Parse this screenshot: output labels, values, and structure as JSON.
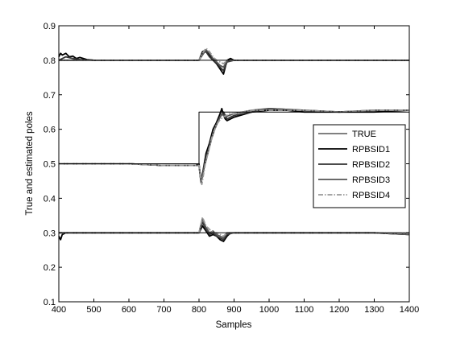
{
  "chart_data": {
    "type": "line",
    "xlabel": "Samples",
    "ylabel": "True and estimated poles",
    "xlim": [
      400,
      1400
    ],
    "ylim": [
      0.1,
      0.9
    ],
    "xticks": [
      400,
      500,
      600,
      700,
      800,
      900,
      1000,
      1100,
      1200,
      1300,
      1400
    ],
    "yticks": [
      0.1,
      0.2,
      0.3,
      0.4,
      0.5,
      0.6,
      0.7,
      0.8,
      0.9
    ],
    "grid": false,
    "legend_position": "right-middle",
    "series": [
      {
        "name": "TRUE",
        "color": "#000000",
        "style": "solid",
        "lines": [
          {
            "x": [
              400,
              1400
            ],
            "y": [
              0.8,
              0.8
            ]
          },
          {
            "x": [
              400,
              800,
              800,
              1400
            ],
            "y": [
              0.5,
              0.5,
              0.65,
              0.65
            ]
          },
          {
            "x": [
              400,
              1400
            ],
            "y": [
              0.3,
              0.3
            ]
          }
        ]
      },
      {
        "name": "RPBSID1",
        "color": "#000000",
        "style": "solid",
        "lines": [
          {
            "x": [
              400,
              405,
              410,
              420,
              430,
              440,
              450,
              460,
              480,
              500,
              600,
              700,
              790,
              800,
              810,
              820,
              830,
              840,
              850,
              860,
              870,
              880,
              890,
              900,
              950,
              1000,
              1100,
              1200,
              1300,
              1400
            ],
            "y": [
              0.81,
              0.82,
              0.815,
              0.82,
              0.81,
              0.812,
              0.805,
              0.808,
              0.802,
              0.8,
              0.8,
              0.8,
              0.8,
              0.8,
              0.825,
              0.83,
              0.815,
              0.8,
              0.79,
              0.775,
              0.76,
              0.8,
              0.805,
              0.8,
              0.8,
              0.8,
              0.8,
              0.8,
              0.8,
              0.8
            ]
          },
          {
            "x": [
              400,
              500,
              600,
              700,
              790,
              800,
              805,
              810,
              820,
              830,
              840,
              850,
              860,
              865,
              870,
              875,
              880,
              890,
              900,
              950,
              1000,
              1050,
              1100,
              1200,
              1300,
              1400
            ],
            "y": [
              0.5,
              0.5,
              0.5,
              0.495,
              0.495,
              0.5,
              0.45,
              0.47,
              0.53,
              0.56,
              0.6,
              0.62,
              0.645,
              0.66,
              0.64,
              0.63,
              0.625,
              0.63,
              0.635,
              0.65,
              0.655,
              0.655,
              0.65,
              0.65,
              0.65,
              0.655
            ]
          },
          {
            "x": [
              400,
              405,
              410,
              420,
              500,
              600,
              700,
              790,
              800,
              810,
              820,
              830,
              840,
              850,
              860,
              870,
              880,
              890,
              900,
              1000,
              1100,
              1200,
              1300,
              1400
            ],
            "y": [
              0.29,
              0.28,
              0.295,
              0.3,
              0.3,
              0.3,
              0.3,
              0.3,
              0.3,
              0.32,
              0.305,
              0.29,
              0.295,
              0.29,
              0.28,
              0.275,
              0.29,
              0.3,
              0.3,
              0.3,
              0.3,
              0.3,
              0.3,
              0.295
            ]
          }
        ]
      },
      {
        "name": "RPBSID2",
        "color": "#333333",
        "style": "solid",
        "lines": [
          {
            "x": [
              400,
              420,
              440,
              460,
              500,
              600,
              700,
              800,
              810,
              820,
              830,
              840,
              850,
              860,
              870,
              880,
              900,
              1000,
              1100,
              1200,
              1300,
              1400
            ],
            "y": [
              0.8,
              0.81,
              0.805,
              0.802,
              0.8,
              0.8,
              0.8,
              0.8,
              0.82,
              0.825,
              0.81,
              0.8,
              0.792,
              0.78,
              0.77,
              0.795,
              0.8,
              0.8,
              0.8,
              0.8,
              0.8,
              0.8
            ]
          },
          {
            "x": [
              400,
              500,
              600,
              700,
              800,
              805,
              812,
              820,
              830,
              840,
              850,
              860,
              870,
              880,
              890,
              900,
              950,
              1000,
              1100,
              1200,
              1300,
              1400
            ],
            "y": [
              0.5,
              0.5,
              0.5,
              0.495,
              0.495,
              0.455,
              0.48,
              0.52,
              0.55,
              0.59,
              0.615,
              0.635,
              0.65,
              0.63,
              0.635,
              0.64,
              0.65,
              0.66,
              0.655,
              0.65,
              0.655,
              0.655
            ]
          },
          {
            "x": [
              400,
              500,
              600,
              700,
              800,
              810,
              820,
              830,
              840,
              850,
              860,
              870,
              880,
              900,
              1000,
              1100,
              1200,
              1300,
              1400
            ],
            "y": [
              0.3,
              0.3,
              0.3,
              0.3,
              0.3,
              0.33,
              0.31,
              0.295,
              0.3,
              0.29,
              0.285,
              0.28,
              0.295,
              0.3,
              0.3,
              0.3,
              0.3,
              0.3,
              0.295
            ]
          }
        ]
      },
      {
        "name": "RPBSID3",
        "color": "#555555",
        "style": "solid",
        "lines": [
          {
            "x": [
              400,
              500,
              600,
              700,
              800,
              810,
              820,
              830,
              840,
              850,
              860,
              870,
              880,
              900,
              1000,
              1100,
              1200,
              1300,
              1400
            ],
            "y": [
              0.8,
              0.8,
              0.8,
              0.8,
              0.8,
              0.815,
              0.83,
              0.82,
              0.805,
              0.795,
              0.785,
              0.78,
              0.798,
              0.8,
              0.8,
              0.8,
              0.8,
              0.8,
              0.8
            ]
          },
          {
            "x": [
              400,
              500,
              600,
              700,
              800,
              806,
              815,
              825,
              835,
              845,
              855,
              865,
              875,
              885,
              900,
              950,
              1000,
              1100,
              1200,
              1300,
              1400
            ],
            "y": [
              0.5,
              0.5,
              0.5,
              0.495,
              0.495,
              0.445,
              0.49,
              0.53,
              0.57,
              0.6,
              0.625,
              0.645,
              0.635,
              0.64,
              0.645,
              0.655,
              0.66,
              0.655,
              0.65,
              0.655,
              0.655
            ]
          },
          {
            "x": [
              400,
              500,
              600,
              700,
              800,
              810,
              820,
              830,
              840,
              850,
              860,
              870,
              880,
              900,
              1000,
              1100,
              1200,
              1300,
              1400
            ],
            "y": [
              0.3,
              0.3,
              0.3,
              0.3,
              0.3,
              0.34,
              0.315,
              0.3,
              0.305,
              0.295,
              0.29,
              0.285,
              0.3,
              0.3,
              0.3,
              0.3,
              0.3,
              0.3,
              0.295
            ]
          }
        ]
      },
      {
        "name": "RPBSID4",
        "color": "#999999",
        "style": "dashdot",
        "lines": [
          {
            "x": [
              400,
              500,
              600,
              700,
              800,
              810,
              820,
              830,
              840,
              850,
              860,
              870,
              880,
              900,
              1000,
              1100,
              1200,
              1300,
              1400
            ],
            "y": [
              0.8,
              0.8,
              0.8,
              0.8,
              0.8,
              0.82,
              0.835,
              0.825,
              0.81,
              0.8,
              0.795,
              0.79,
              0.8,
              0.8,
              0.8,
              0.8,
              0.8,
              0.8,
              0.8
            ]
          },
          {
            "x": [
              400,
              500,
              600,
              700,
              800,
              808,
              818,
              828,
              838,
              848,
              858,
              868,
              878,
              888,
              900,
              950,
              1000,
              1100,
              1200,
              1300,
              1400
            ],
            "y": [
              0.5,
              0.5,
              0.5,
              0.495,
              0.495,
              0.44,
              0.5,
              0.54,
              0.58,
              0.61,
              0.625,
              0.635,
              0.64,
              0.645,
              0.645,
              0.655,
              0.655,
              0.655,
              0.65,
              0.655,
              0.655
            ]
          },
          {
            "x": [
              400,
              500,
              600,
              700,
              800,
              810,
              820,
              830,
              840,
              850,
              860,
              870,
              880,
              900,
              1000,
              1100,
              1200,
              1300,
              1400
            ],
            "y": [
              0.3,
              0.3,
              0.3,
              0.3,
              0.3,
              0.345,
              0.32,
              0.31,
              0.3,
              0.3,
              0.295,
              0.29,
              0.3,
              0.3,
              0.3,
              0.3,
              0.3,
              0.3,
              0.298
            ]
          }
        ]
      }
    ]
  }
}
